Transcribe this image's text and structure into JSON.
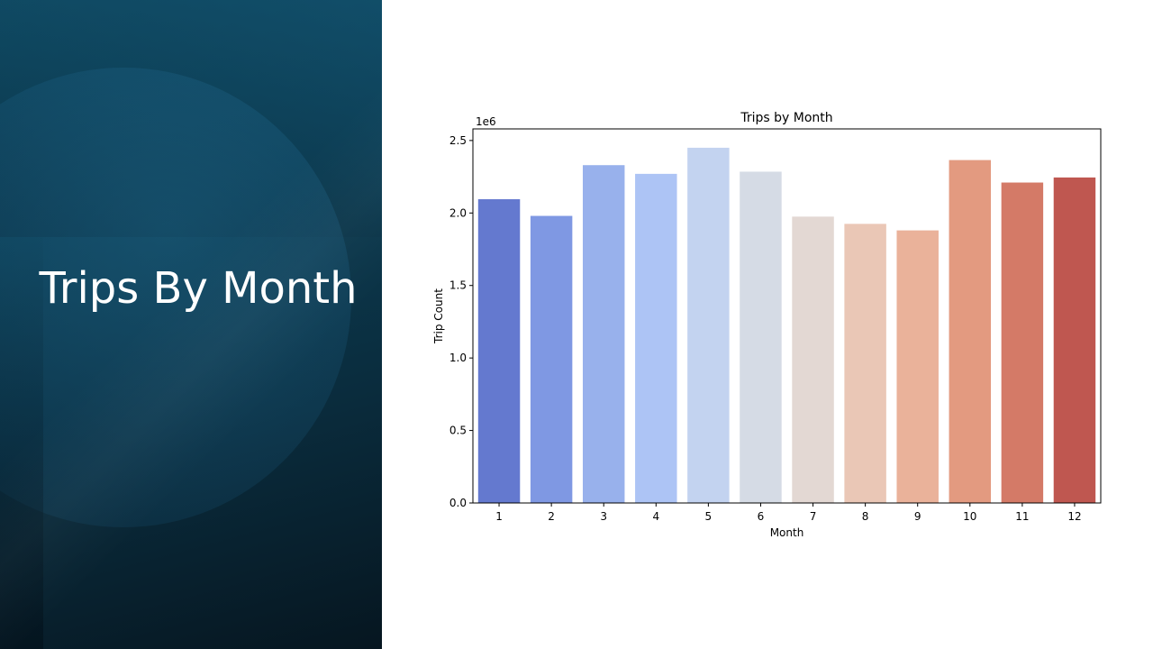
{
  "slide": {
    "title": "Trips By Month"
  },
  "chart_data": {
    "type": "bar",
    "title": "Trips by Month",
    "xlabel": "Month",
    "ylabel": "Trip Count",
    "y_offset_label": "1e6",
    "y_scale": 1000000,
    "ylim": [
      0,
      2.58
    ],
    "y_ticks": [
      "0.0",
      "0.5",
      "1.0",
      "1.5",
      "2.0",
      "2.5"
    ],
    "categories": [
      "1",
      "2",
      "3",
      "4",
      "5",
      "6",
      "7",
      "8",
      "9",
      "10",
      "11",
      "12"
    ],
    "values": [
      2095000,
      1980000,
      2330000,
      2270000,
      2450000,
      2285000,
      1975000,
      1925000,
      1880000,
      2365000,
      2210000,
      2245000
    ],
    "colors": [
      "#6479cf",
      "#7f98e3",
      "#98b1ec",
      "#adc4f5",
      "#c3d3f0",
      "#d5dbe5",
      "#e3d8d3",
      "#eac7b6",
      "#eab29a",
      "#e39a80",
      "#d47a67",
      "#bf5750"
    ],
    "grid": false,
    "legend": "none"
  }
}
